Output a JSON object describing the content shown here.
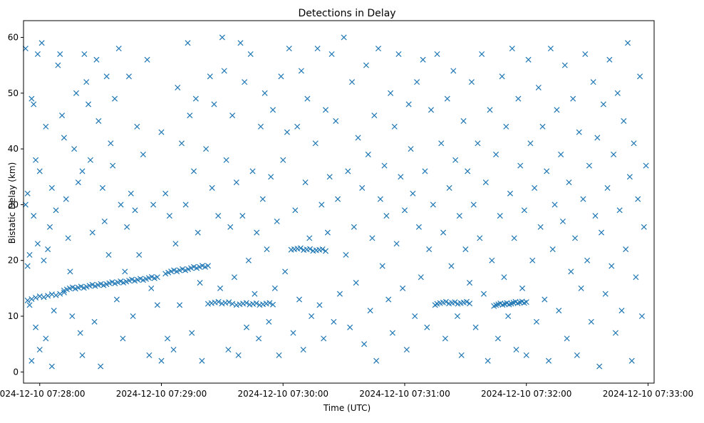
{
  "chart_data": {
    "type": "scatter",
    "title": "Detections in Delay",
    "xlabel": "Time (UTC)",
    "ylabel": "Bistatic Delay (km)",
    "x_unit": "seconds after 2024-12-10 07:28:00",
    "xlim": [
      -8,
      303
    ],
    "ylim": [
      -2,
      63
    ],
    "x_ticks": [
      0,
      60,
      120,
      180,
      240,
      300
    ],
    "x_tick_labels": [
      "2024-12-10 07:28:00",
      "2024-12-10 07:29:00",
      "2024-12-10 07:30:00",
      "2024-12-10 07:31:00",
      "2024-12-10 07:32:00",
      "2024-12-10 07:33:00"
    ],
    "y_ticks": [
      0,
      10,
      20,
      30,
      40,
      50,
      60
    ],
    "y_tick_labels": [
      "0",
      "10",
      "20",
      "30",
      "40",
      "50",
      "60"
    ],
    "marker": "x",
    "color": "#1f77b4",
    "grid": false,
    "legend": false,
    "track_points": {
      "note": "Dense linear detection tracks visible in the figure (start/end in data units; interior points interpolated)",
      "tracks": [
        {
          "x_start": -6,
          "x_end": 12,
          "y_start": 13,
          "y_end": 14.2,
          "count": 10
        },
        {
          "x_start": 12,
          "x_end": 58,
          "y_start": 14.8,
          "y_end": 17.0,
          "count": 34
        },
        {
          "x_start": 62,
          "x_end": 83,
          "y_start": 17.8,
          "y_end": 19.1,
          "count": 16
        },
        {
          "x_start": 83,
          "x_end": 95,
          "y_start": 12.4,
          "y_end": 12.4,
          "count": 8
        },
        {
          "x_start": 97,
          "x_end": 115,
          "y_start": 12.2,
          "y_end": 12.2,
          "count": 12
        },
        {
          "x_start": 124,
          "x_end": 141,
          "y_start": 22.1,
          "y_end": 21.8,
          "count": 12
        },
        {
          "x_start": 196,
          "x_end": 212,
          "y_start": 12.4,
          "y_end": 12.4,
          "count": 12
        },
        {
          "x_start": 224,
          "x_end": 240,
          "y_start": 12.0,
          "y_end": 12.6,
          "count": 16
        }
      ]
    },
    "scatter_points": {
      "note": "Remaining detections, estimated positions as [x_seconds, y_km]",
      "points": [
        [
          -7,
          58
        ],
        [
          -7,
          30
        ],
        [
          -6,
          32
        ],
        [
          -6,
          19
        ],
        [
          -5,
          21
        ],
        [
          -5,
          12
        ],
        [
          -4,
          2
        ],
        [
          -4,
          49
        ],
        [
          -3,
          48
        ],
        [
          -3,
          28
        ],
        [
          -2,
          8
        ],
        [
          -2,
          38
        ],
        [
          -1,
          57
        ],
        [
          -1,
          23
        ],
        [
          0,
          4
        ],
        [
          0,
          36
        ],
        [
          1,
          59
        ],
        [
          2,
          20
        ],
        [
          3,
          44
        ],
        [
          3,
          6
        ],
        [
          4,
          22
        ],
        [
          5,
          26
        ],
        [
          6,
          1
        ],
        [
          6,
          33
        ],
        [
          7,
          11
        ],
        [
          8,
          29
        ],
        [
          9,
          55
        ],
        [
          10,
          57
        ],
        [
          11,
          46
        ],
        [
          12,
          42
        ],
        [
          13,
          31
        ],
        [
          14,
          24
        ],
        [
          15,
          18
        ],
        [
          16,
          10
        ],
        [
          17,
          40
        ],
        [
          18,
          50
        ],
        [
          19,
          34
        ],
        [
          20,
          7
        ],
        [
          21,
          36
        ],
        [
          21,
          3
        ],
        [
          22,
          57
        ],
        [
          23,
          52
        ],
        [
          24,
          48
        ],
        [
          25,
          38
        ],
        [
          26,
          25
        ],
        [
          27,
          9
        ],
        [
          28,
          56
        ],
        [
          29,
          45
        ],
        [
          30,
          1
        ],
        [
          31,
          33
        ],
        [
          32,
          27
        ],
        [
          33,
          53
        ],
        [
          34,
          21
        ],
        [
          35,
          41
        ],
        [
          36,
          37
        ],
        [
          37,
          49
        ],
        [
          38,
          13
        ],
        [
          39,
          58
        ],
        [
          40,
          30
        ],
        [
          41,
          6
        ],
        [
          42,
          18
        ],
        [
          43,
          26
        ],
        [
          44,
          53
        ],
        [
          45,
          32
        ],
        [
          46,
          10
        ],
        [
          47,
          29
        ],
        [
          48,
          44
        ],
        [
          49,
          21
        ],
        [
          51,
          39
        ],
        [
          53,
          56
        ],
        [
          54,
          3
        ],
        [
          55,
          15
        ],
        [
          56,
          30
        ],
        [
          58,
          12
        ],
        [
          60,
          2
        ],
        [
          60,
          43
        ],
        [
          62,
          32
        ],
        [
          63,
          6
        ],
        [
          64,
          28
        ],
        [
          66,
          4
        ],
        [
          67,
          23
        ],
        [
          68,
          51
        ],
        [
          69,
          12
        ],
        [
          70,
          41
        ],
        [
          72,
          30
        ],
        [
          73,
          59
        ],
        [
          74,
          46
        ],
        [
          75,
          7
        ],
        [
          76,
          36
        ],
        [
          77,
          49
        ],
        [
          78,
          25
        ],
        [
          79,
          16
        ],
        [
          80,
          2
        ],
        [
          82,
          40
        ],
        [
          84,
          53
        ],
        [
          85,
          33
        ],
        [
          86,
          48
        ],
        [
          88,
          28
        ],
        [
          89,
          15
        ],
        [
          90,
          60
        ],
        [
          91,
          54
        ],
        [
          92,
          38
        ],
        [
          93,
          4
        ],
        [
          94,
          26
        ],
        [
          95,
          46
        ],
        [
          96,
          17
        ],
        [
          97,
          34
        ],
        [
          98,
          3
        ],
        [
          99,
          59
        ],
        [
          100,
          28
        ],
        [
          101,
          52
        ],
        [
          102,
          8
        ],
        [
          103,
          20
        ],
        [
          104,
          57
        ],
        [
          105,
          36
        ],
        [
          106,
          14
        ],
        [
          107,
          25
        ],
        [
          108,
          6
        ],
        [
          109,
          44
        ],
        [
          110,
          31
        ],
        [
          111,
          50
        ],
        [
          112,
          22
        ],
        [
          113,
          9
        ],
        [
          114,
          35
        ],
        [
          115,
          47
        ],
        [
          116,
          15
        ],
        [
          117,
          27
        ],
        [
          118,
          3
        ],
        [
          119,
          53
        ],
        [
          120,
          38
        ],
        [
          121,
          18
        ],
        [
          122,
          43
        ],
        [
          123,
          58
        ],
        [
          125,
          7
        ],
        [
          126,
          29
        ],
        [
          127,
          44
        ],
        [
          128,
          13
        ],
        [
          129,
          54
        ],
        [
          130,
          4
        ],
        [
          131,
          34
        ],
        [
          132,
          49
        ],
        [
          133,
          24
        ],
        [
          134,
          10
        ],
        [
          136,
          41
        ],
        [
          137,
          58
        ],
        [
          138,
          12
        ],
        [
          139,
          30
        ],
        [
          140,
          6
        ],
        [
          141,
          47
        ],
        [
          142,
          25
        ],
        [
          143,
          35
        ],
        [
          144,
          57
        ],
        [
          145,
          9
        ],
        [
          146,
          45
        ],
        [
          147,
          31
        ],
        [
          148,
          14
        ],
        [
          150,
          60
        ],
        [
          151,
          21
        ],
        [
          152,
          36
        ],
        [
          153,
          8
        ],
        [
          154,
          52
        ],
        [
          155,
          26
        ],
        [
          156,
          16
        ],
        [
          157,
          42
        ],
        [
          159,
          33
        ],
        [
          160,
          5
        ],
        [
          161,
          55
        ],
        [
          162,
          39
        ],
        [
          163,
          11
        ],
        [
          164,
          24
        ],
        [
          165,
          46
        ],
        [
          166,
          2
        ],
        [
          167,
          58
        ],
        [
          168,
          31
        ],
        [
          169,
          19
        ],
        [
          170,
          37
        ],
        [
          171,
          28
        ],
        [
          172,
          13
        ],
        [
          173,
          50
        ],
        [
          174,
          7
        ],
        [
          175,
          44
        ],
        [
          176,
          23
        ],
        [
          177,
          57
        ],
        [
          178,
          35
        ],
        [
          179,
          15
        ],
        [
          180,
          29
        ],
        [
          181,
          4
        ],
        [
          182,
          48
        ],
        [
          183,
          40
        ],
        [
          184,
          32
        ],
        [
          185,
          10
        ],
        [
          186,
          52
        ],
        [
          187,
          26
        ],
        [
          188,
          17
        ],
        [
          189,
          56
        ],
        [
          190,
          36
        ],
        [
          191,
          8
        ],
        [
          192,
          22
        ],
        [
          193,
          47
        ],
        [
          194,
          30
        ],
        [
          195,
          12
        ],
        [
          196,
          57
        ],
        [
          198,
          41
        ],
        [
          199,
          25
        ],
        [
          200,
          6
        ],
        [
          201,
          49
        ],
        [
          202,
          33
        ],
        [
          203,
          19
        ],
        [
          204,
          54
        ],
        [
          205,
          38
        ],
        [
          206,
          10
        ],
        [
          207,
          28
        ],
        [
          208,
          3
        ],
        [
          209,
          45
        ],
        [
          210,
          22
        ],
        [
          211,
          36
        ],
        [
          212,
          16
        ],
        [
          213,
          52
        ],
        [
          214,
          30
        ],
        [
          215,
          8
        ],
        [
          216,
          41
        ],
        [
          217,
          24
        ],
        [
          218,
          57
        ],
        [
          219,
          14
        ],
        [
          220,
          34
        ],
        [
          221,
          2
        ],
        [
          222,
          47
        ],
        [
          223,
          20
        ],
        [
          225,
          39
        ],
        [
          226,
          6
        ],
        [
          227,
          28
        ],
        [
          228,
          53
        ],
        [
          229,
          17
        ],
        [
          230,
          44
        ],
        [
          231,
          10
        ],
        [
          232,
          32
        ],
        [
          233,
          58
        ],
        [
          234,
          24
        ],
        [
          235,
          4
        ],
        [
          236,
          49
        ],
        [
          237,
          37
        ],
        [
          238,
          15
        ],
        [
          239,
          29
        ],
        [
          240,
          3
        ],
        [
          241,
          56
        ],
        [
          242,
          41
        ],
        [
          243,
          20
        ],
        [
          244,
          33
        ],
        [
          245,
          9
        ],
        [
          246,
          51
        ],
        [
          247,
          26
        ],
        [
          248,
          44
        ],
        [
          249,
          13
        ],
        [
          250,
          36
        ],
        [
          251,
          2
        ],
        [
          252,
          58
        ],
        [
          253,
          22
        ],
        [
          254,
          30
        ],
        [
          255,
          47
        ],
        [
          256,
          11
        ],
        [
          257,
          39
        ],
        [
          258,
          27
        ],
        [
          259,
          55
        ],
        [
          260,
          6
        ],
        [
          261,
          34
        ],
        [
          262,
          18
        ],
        [
          263,
          49
        ],
        [
          264,
          24
        ],
        [
          265,
          3
        ],
        [
          266,
          43
        ],
        [
          267,
          15
        ],
        [
          268,
          31
        ],
        [
          269,
          57
        ],
        [
          270,
          20
        ],
        [
          271,
          37
        ],
        [
          272,
          9
        ],
        [
          273,
          52
        ],
        [
          274,
          28
        ],
        [
          275,
          42
        ],
        [
          276,
          1
        ],
        [
          277,
          25
        ],
        [
          278,
          48
        ],
        [
          279,
          14
        ],
        [
          280,
          33
        ],
        [
          281,
          56
        ],
        [
          282,
          19
        ],
        [
          283,
          39
        ],
        [
          284,
          7
        ],
        [
          285,
          50
        ],
        [
          286,
          29
        ],
        [
          287,
          11
        ],
        [
          288,
          45
        ],
        [
          289,
          22
        ],
        [
          290,
          59
        ],
        [
          291,
          35
        ],
        [
          292,
          2
        ],
        [
          293,
          41
        ],
        [
          294,
          17
        ],
        [
          295,
          31
        ],
        [
          296,
          53
        ],
        [
          297,
          10
        ],
        [
          298,
          26
        ],
        [
          299,
          37
        ]
      ]
    }
  }
}
